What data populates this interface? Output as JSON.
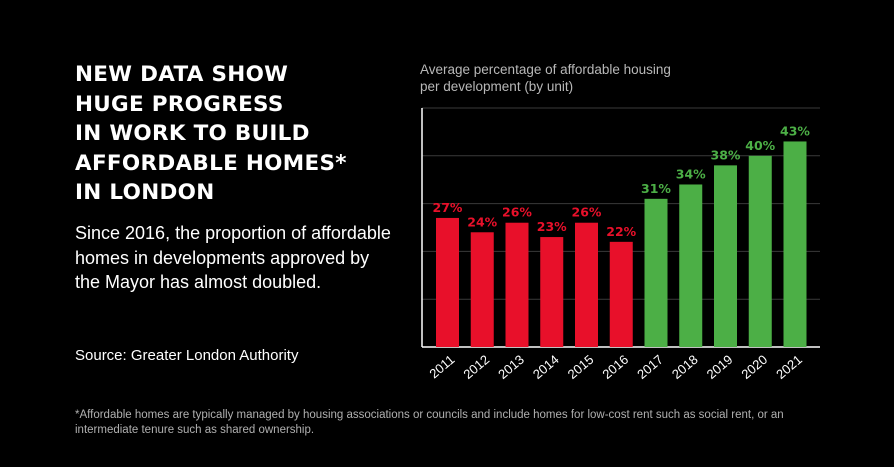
{
  "headline": {
    "lines": [
      "NEW DATA SHOW",
      "HUGE PROGRESS",
      "IN WORK TO BUILD",
      "AFFORDABLE HOMES*",
      "IN LONDON"
    ]
  },
  "body_text": "Since 2016, the proportion of affordable homes in developments approved by the Mayor has almost doubled.",
  "source": "Source: Greater London Authority",
  "footnote": "*Affordable homes are typically managed by housing associations or councils and include homes for low-cost rent such as social rent, or an intermediate tenure such as shared ownership.",
  "colors": {
    "red": "#e8102a",
    "green": "#4caf46",
    "background": "#000000",
    "grid": "#3a3a3a"
  },
  "chart_data": {
    "type": "bar",
    "title": "Average percentage of affordable housing per development (by unit)",
    "categories": [
      "2011",
      "2012",
      "2013",
      "2014",
      "2015",
      "2016",
      "2017",
      "2018",
      "2019",
      "2020",
      "2021"
    ],
    "values": [
      27,
      24,
      26,
      23,
      26,
      22,
      31,
      34,
      38,
      40,
      43
    ],
    "data_labels": [
      "27%",
      "24%",
      "26%",
      "23%",
      "26%",
      "22%",
      "31%",
      "34%",
      "38%",
      "40%",
      "43%"
    ],
    "bar_colors": [
      "red",
      "red",
      "red",
      "red",
      "red",
      "red",
      "green",
      "green",
      "green",
      "green",
      "green"
    ],
    "ylim": [
      0,
      50
    ],
    "yticks": [
      10,
      20,
      30,
      40,
      50
    ],
    "grid": true,
    "legend": "none",
    "xlabel": "",
    "ylabel": ""
  }
}
